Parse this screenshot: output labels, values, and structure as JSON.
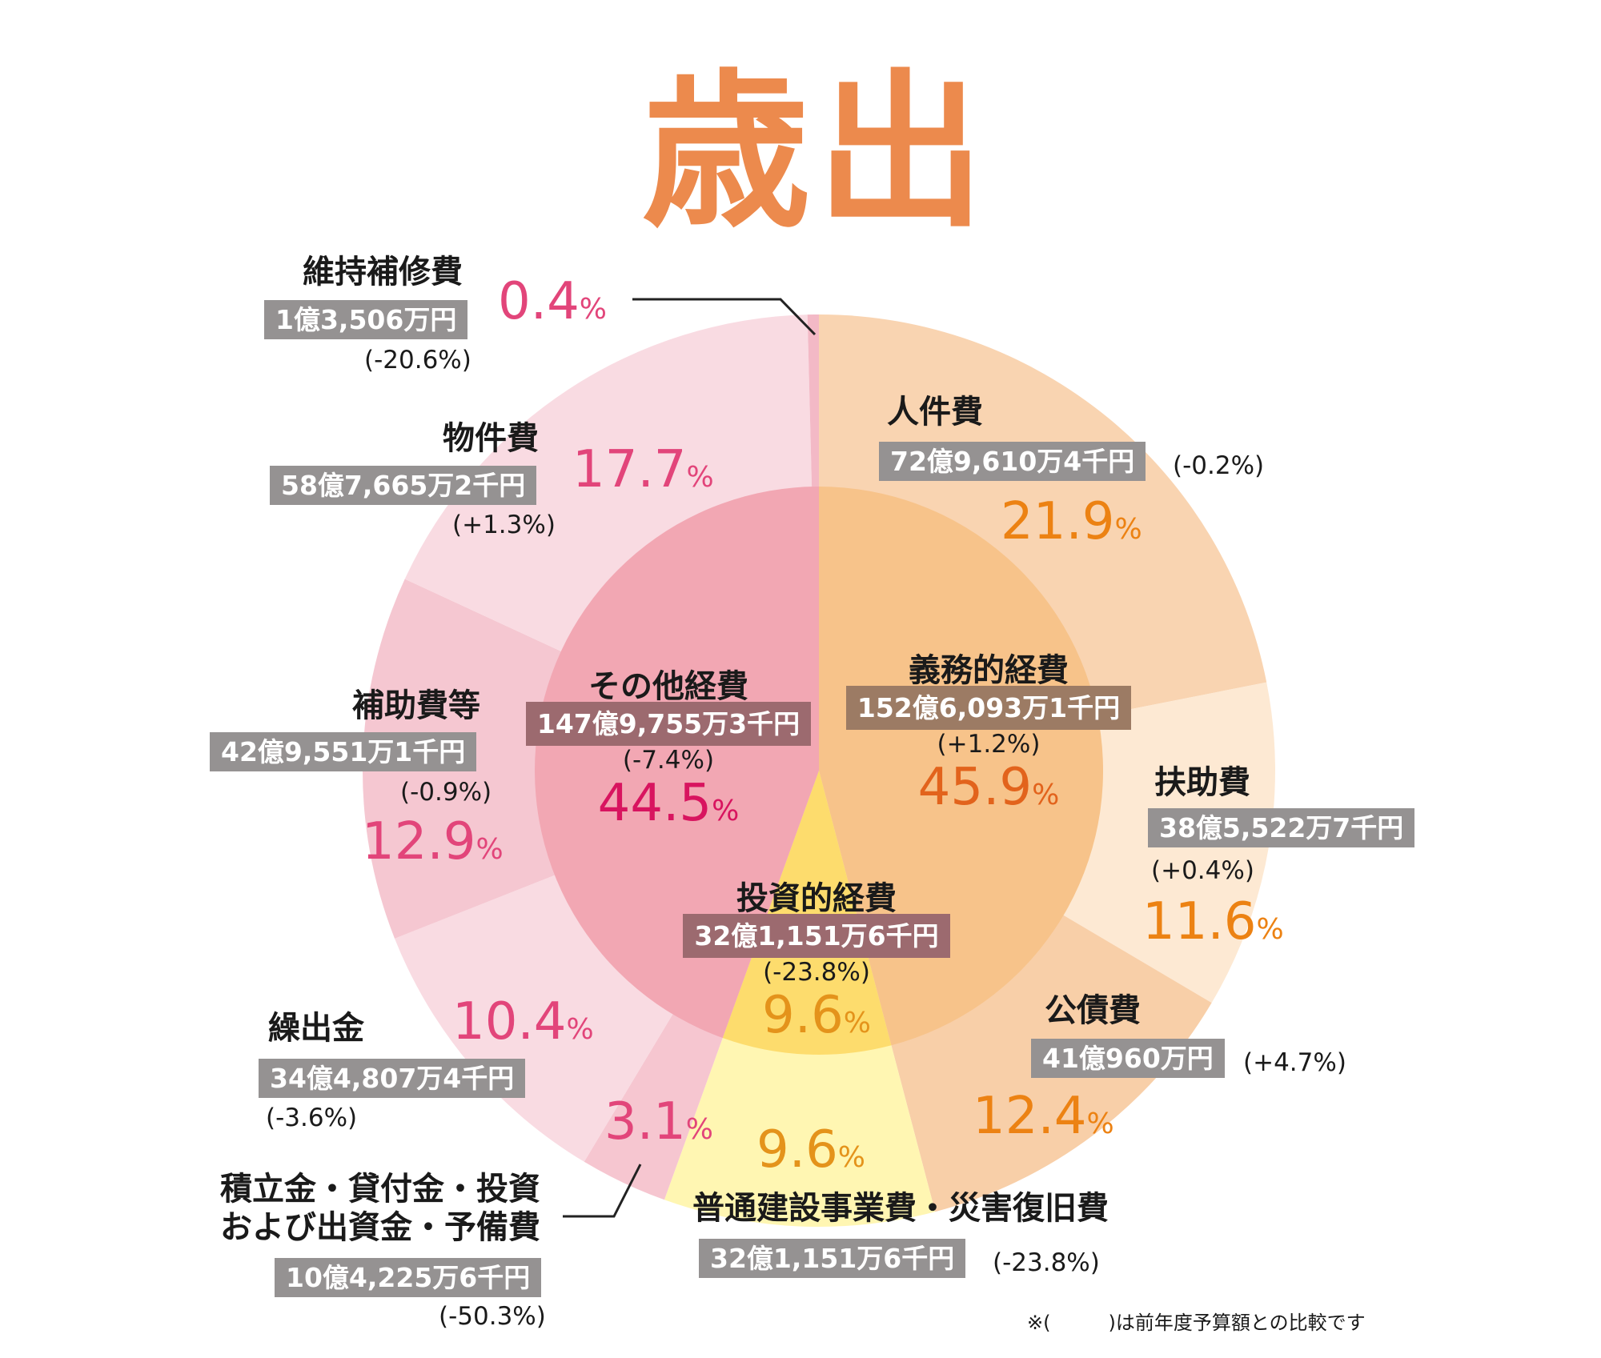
{
  "title": "歳出",
  "note": "※(　　　)は前年度予算額との比較です",
  "colors": {
    "inner": {
      "その他経費": "#f2a7b3",
      "義務的経費": "#f7c38a",
      "投資的経費": "#fddc6d"
    },
    "outer": {
      "人件費": "#f9d4b1",
      "扶助費": "#fde9d3",
      "公債費": "#f8cfa8",
      "普通建設事業費・災害復旧費": "#fff6b2",
      "積立金・貸付金・投資および出資金・予備費": "#f6c6d0",
      "繰出金": "#f9dbe2",
      "補助費等": "#f5c7d1",
      "物件費": "#f9dbe2",
      "維持補修費": "#f3b9c6"
    }
  },
  "chart_data": {
    "type": "pie",
    "title": "歳出",
    "inner_ring": [
      {
        "name": "義務的経費",
        "amount": "152億6,093万1千円",
        "change": "(+1.2%)",
        "value": 45.9
      },
      {
        "name": "投資的経費",
        "amount": "32億1,151万6千円",
        "change": "(-23.8%)",
        "value": 9.6
      },
      {
        "name": "その他経費",
        "amount": "147億9,755万3千円",
        "change": "(-7.4%)",
        "value": 44.5
      }
    ],
    "outer_ring": [
      {
        "name": "人件費",
        "amount": "72億9,610万4千円",
        "change": "(-0.2%)",
        "value": 21.9,
        "group": "義務的経費"
      },
      {
        "name": "扶助費",
        "amount": "38億5,522万7千円",
        "change": "(+0.4%)",
        "value": 11.6,
        "group": "義務的経費"
      },
      {
        "name": "公債費",
        "amount": "41億960万円",
        "change": "(+4.7%)",
        "value": 12.4,
        "group": "義務的経費"
      },
      {
        "name": "普通建設事業費・災害復旧費",
        "amount": "32億1,151万6千円",
        "change": "(-23.8%)",
        "value": 9.6,
        "group": "投資的経費"
      },
      {
        "name_lines": [
          "積立金・貸付金・投資",
          "および出資金・予備費"
        ],
        "name": "積立金・貸付金・投資および出資金・予備費",
        "amount": "10億4,225万6千円",
        "change": "(-50.3%)",
        "value": 3.1,
        "group": "その他経費"
      },
      {
        "name": "繰出金",
        "amount": "34億4,807万4千円",
        "change": "(-3.6%)",
        "value": 10.4,
        "group": "その他経費"
      },
      {
        "name": "補助費等",
        "amount": "42億9,551万1千円",
        "change": "(-0.9%)",
        "value": 12.9,
        "group": "その他経費"
      },
      {
        "name": "物件費",
        "amount": "58億7,665万2千円",
        "change": "(+1.3%)",
        "value": 17.7,
        "group": "その他経費"
      },
      {
        "name": "維持補修費",
        "amount": "1億3,506万円",
        "change": "(-20.6%)",
        "value": 0.4,
        "group": "その他経費"
      }
    ],
    "unit": "%"
  }
}
